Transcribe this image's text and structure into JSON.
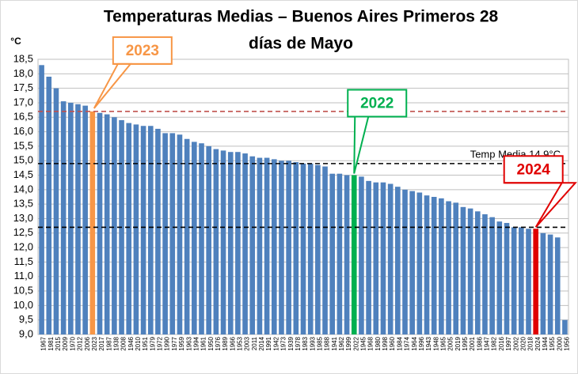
{
  "chart_data": {
    "type": "bar",
    "title": "Temperaturas Medias – Buenos Aires Primeros 28",
    "subtitle": "días de Mayo",
    "y_label": "°C",
    "color": "#4f81bd",
    "grid": true,
    "ylim": [
      9.0,
      18.5
    ],
    "yticks": [
      {
        "value": 9.0,
        "label": "9,0"
      },
      {
        "value": 9.5,
        "label": "9,5"
      },
      {
        "value": 10.0,
        "label": "10,0"
      },
      {
        "value": 10.5,
        "label": "10,5"
      },
      {
        "value": 11.0,
        "label": "11,0"
      },
      {
        "value": 11.5,
        "label": "11,5"
      },
      {
        "value": 12.0,
        "label": "12,0"
      },
      {
        "value": 12.5,
        "label": "12,5"
      },
      {
        "value": 13.0,
        "label": "13,0"
      },
      {
        "value": 13.5,
        "label": "13,5"
      },
      {
        "value": 14.0,
        "label": "14,0"
      },
      {
        "value": 14.5,
        "label": "14,5"
      },
      {
        "value": 15.0,
        "label": "15,0"
      },
      {
        "value": 15.5,
        "label": "15,5"
      },
      {
        "value": 16.0,
        "label": "16,0"
      },
      {
        "value": 16.5,
        "label": "16,5"
      },
      {
        "value": 17.0,
        "label": "17,0"
      },
      {
        "value": 17.5,
        "label": "17,5"
      },
      {
        "value": 18.0,
        "label": "18,0"
      },
      {
        "value": 18.5,
        "label": "18,5"
      }
    ],
    "categories": [
      "1967",
      "1981",
      "2015",
      "2009",
      "1970",
      "2012",
      "2006",
      "2023",
      "2017",
      "1987",
      "1938",
      "2008",
      "1946",
      "2010",
      "1951",
      "1979",
      "1972",
      "1990",
      "1977",
      "1959",
      "1963",
      "1994",
      "1961",
      "1950",
      "1976",
      "1989",
      "1966",
      "1953",
      "2003",
      "2011",
      "2014",
      "1991",
      "1942",
      "1973",
      "1939",
      "1978",
      "1983",
      "1993",
      "1985",
      "1988",
      "1941",
      "1962",
      "1999",
      "2022",
      "1945",
      "1968",
      "1980",
      "1998",
      "1960",
      "1984",
      "1974",
      "1964",
      "1996",
      "1943",
      "1948",
      "1965",
      "2005",
      "2019",
      "1995",
      "2001",
      "1986",
      "1947",
      "1982",
      "2016",
      "1997",
      "2002",
      "2020",
      "2018",
      "2024",
      "1944",
      "1955",
      "2000",
      "1956"
    ],
    "values": [
      18.3,
      17.9,
      17.5,
      17.05,
      17.0,
      16.95,
      16.9,
      16.7,
      16.65,
      16.6,
      16.5,
      16.4,
      16.3,
      16.25,
      16.2,
      16.2,
      16.1,
      15.95,
      15.95,
      15.9,
      15.75,
      15.65,
      15.6,
      15.5,
      15.4,
      15.35,
      15.3,
      15.3,
      15.25,
      15.15,
      15.1,
      15.1,
      15.05,
      15.0,
      15.0,
      14.95,
      14.9,
      14.9,
      14.85,
      14.8,
      14.55,
      14.55,
      14.5,
      14.5,
      14.45,
      14.3,
      14.25,
      14.25,
      14.2,
      14.1,
      14.0,
      13.95,
      13.9,
      13.8,
      13.75,
      13.7,
      13.6,
      13.55,
      13.4,
      13.35,
      13.25,
      13.15,
      13.05,
      12.9,
      12.85,
      12.7,
      12.7,
      12.65,
      12.65,
      12.5,
      12.45,
      12.35,
      9.5
    ],
    "reference_lines": [
      {
        "value": 16.7,
        "color": "#c0504d"
      },
      {
        "value": 14.9,
        "color": "#000000",
        "label": "Temp Media 14.9°C"
      },
      {
        "value": 12.7,
        "color": "#000000"
      }
    ],
    "annotations": [
      {
        "text": "2023",
        "color": "#f79646"
      },
      {
        "text": "2022",
        "color": "#00b050"
      },
      {
        "text": "2024",
        "color": "#e00000"
      }
    ]
  }
}
